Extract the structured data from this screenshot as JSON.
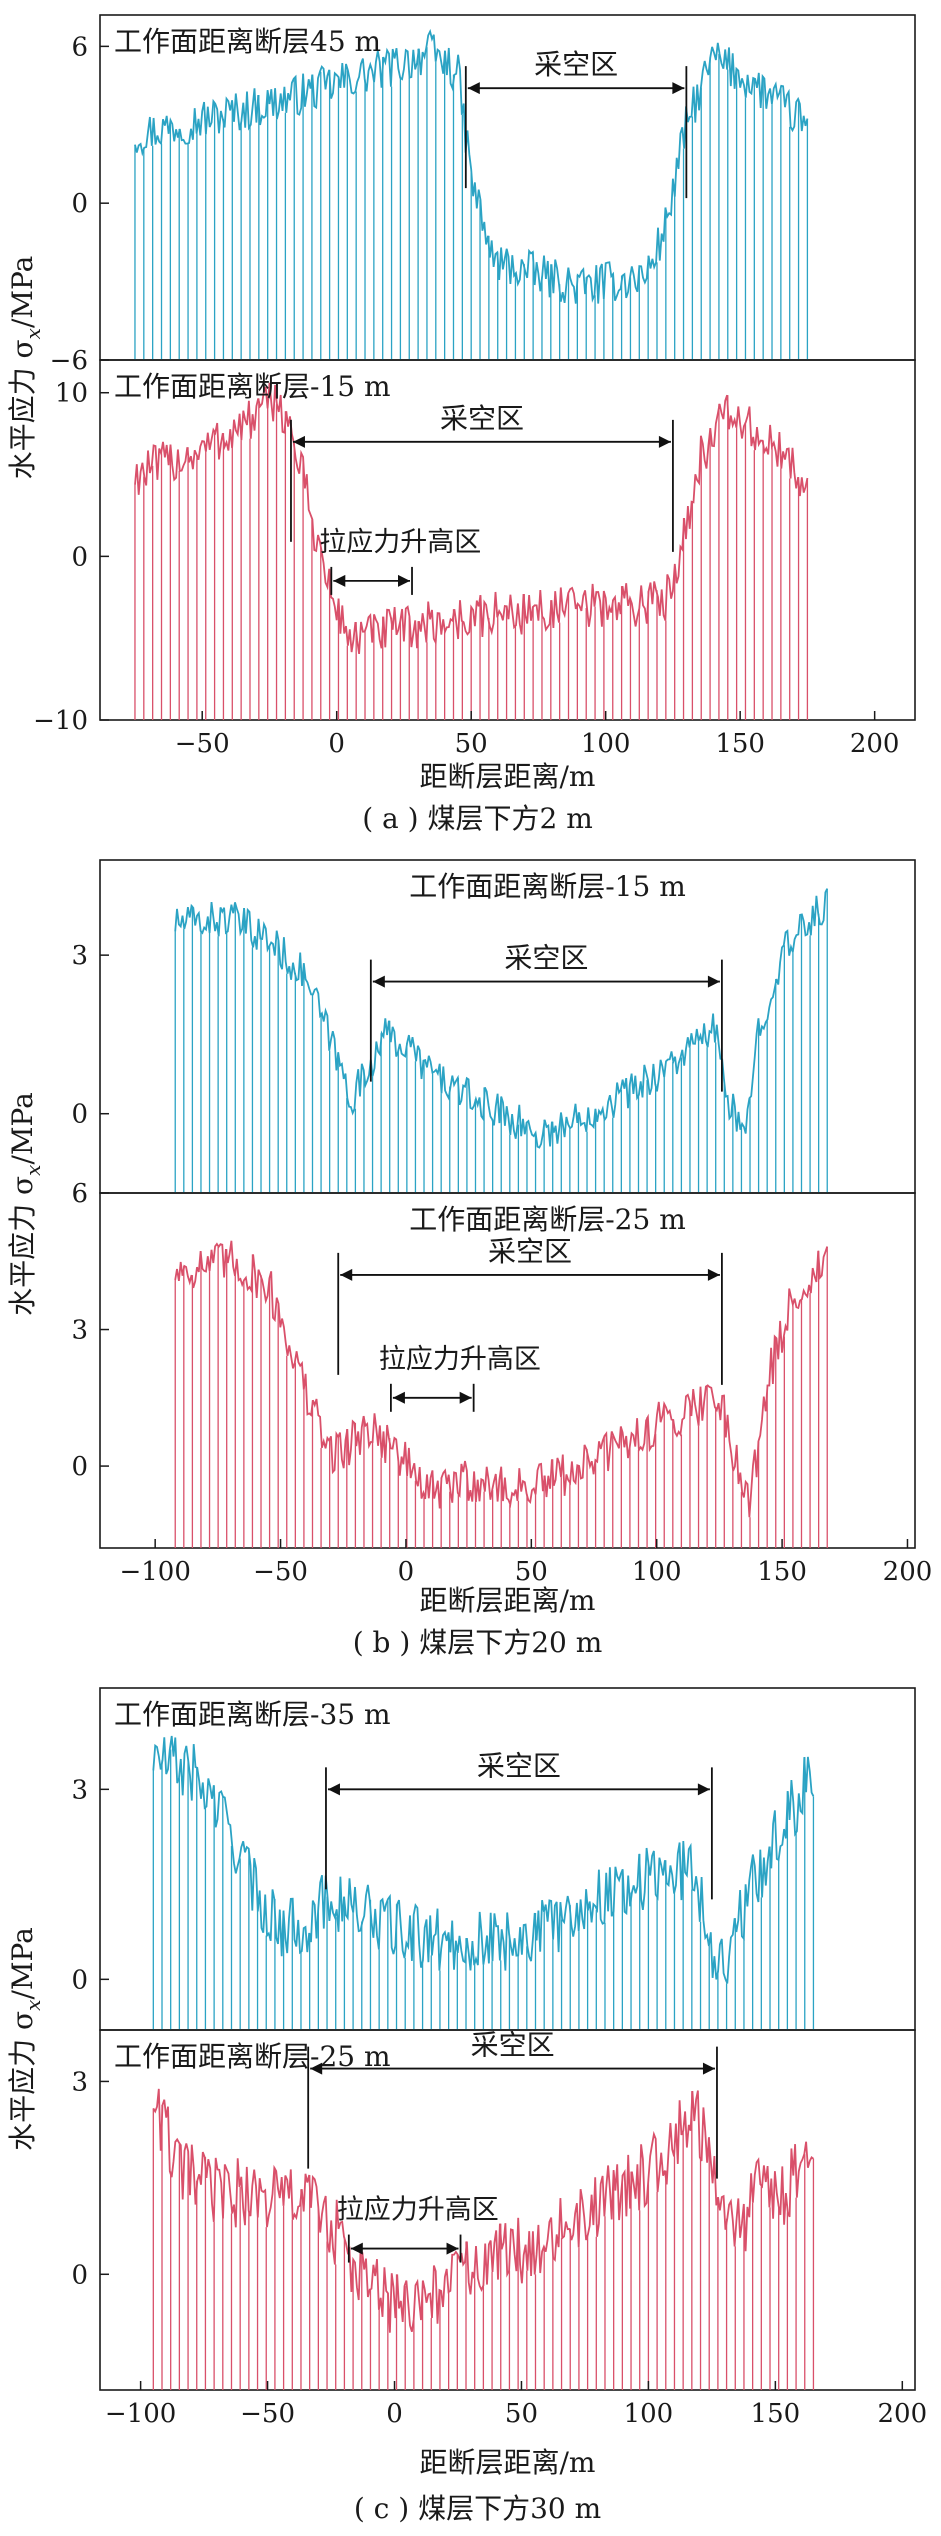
{
  "figure": {
    "shared_xlabel": "距断层距离/m",
    "ylabel_text": "水平应力 σ",
    "ylabel_sub": "x",
    "ylabel_unit": "/MPa",
    "colors": {
      "blue": "#2ba3c4",
      "red": "#d9506a",
      "axis": "#1a1a1a"
    }
  },
  "chart_data": [
    {
      "type": "line",
      "group": "a",
      "caption": "( a ) 煤层下方2 m",
      "xticks": [
        -50,
        0,
        50,
        100,
        150,
        200
      ],
      "xlim": [
        -88,
        215
      ],
      "panels": [
        {
          "color": "blue",
          "title": "工作面距离断层45 m",
          "title_pos": "left",
          "ylim": [
            -6,
            7.2
          ],
          "yticks": [
            -6,
            0,
            6
          ],
          "x_range": [
            -75,
            175
          ],
          "profile": [
            [
              -75,
              2.6
            ],
            [
              -50,
              3.2
            ],
            [
              -25,
              3.8
            ],
            [
              0,
              4.6
            ],
            [
              20,
              5.2
            ],
            [
              35,
              5.8
            ],
            [
              45,
              5.0
            ],
            [
              50,
              1.0
            ],
            [
              58,
              -2.2
            ],
            [
              90,
              -3.2
            ],
            [
              115,
              -2.8
            ],
            [
              122,
              -1.0
            ],
            [
              130,
              3.0
            ],
            [
              140,
              5.6
            ],
            [
              160,
              4.2
            ],
            [
              175,
              3.0
            ]
          ],
          "noise": 0.8,
          "goaf": {
            "label": "采空区",
            "x1": 48,
            "x2": 130,
            "y": 4.4
          },
          "tension": null
        },
        {
          "color": "red",
          "title": "工作面距离断层-15 m",
          "title_pos": "left",
          "ylim": [
            -10,
            12
          ],
          "yticks": [
            -10,
            0,
            10
          ],
          "x_range": [
            -75,
            175
          ],
          "profile": [
            [
              -75,
              5.0
            ],
            [
              -50,
              6.5
            ],
            [
              -30,
              8.5
            ],
            [
              -22,
              9.8
            ],
            [
              -15,
              6.5
            ],
            [
              -8,
              1.5
            ],
            [
              -2,
              -2.5
            ],
            [
              5,
              -5.0
            ],
            [
              20,
              -4.5
            ],
            [
              60,
              -3.5
            ],
            [
              100,
              -3.0
            ],
            [
              122,
              -2.8
            ],
            [
              128,
              0.5
            ],
            [
              135,
              6.0
            ],
            [
              145,
              8.8
            ],
            [
              160,
              7.0
            ],
            [
              175,
              4.5
            ]
          ],
          "noise": 1.4,
          "goaf": {
            "label": "采空区",
            "x1": -17,
            "x2": 125,
            "y": 7.0
          },
          "tension": {
            "label": "拉应力升高区",
            "x1": -2,
            "x2": 28,
            "y": -1.5
          }
        }
      ]
    },
    {
      "type": "line",
      "group": "b",
      "caption": "( b ) 煤层下方20 m",
      "xticks": [
        -100,
        -50,
        0,
        50,
        100,
        150,
        200
      ],
      "xlim": [
        -122,
        203
      ],
      "panels": [
        {
          "color": "blue",
          "title": "工作面距离断层-15 m",
          "title_pos": "center",
          "ylim": [
            -1.5,
            4.8
          ],
          "yticks": [
            0,
            3
          ],
          "x_range": [
            -92,
            168
          ],
          "profile": [
            [
              -92,
              3.6
            ],
            [
              -70,
              3.7
            ],
            [
              -55,
              3.3
            ],
            [
              -40,
              2.6
            ],
            [
              -30,
              1.4
            ],
            [
              -22,
              0.3
            ],
            [
              -15,
              0.8
            ],
            [
              -10,
              1.5
            ],
            [
              0,
              1.3
            ],
            [
              10,
              0.8
            ],
            [
              25,
              0.3
            ],
            [
              40,
              0.0
            ],
            [
              52,
              -0.4
            ],
            [
              65,
              -0.2
            ],
            [
              80,
              0.2
            ],
            [
              95,
              0.6
            ],
            [
              110,
              1.1
            ],
            [
              123,
              1.6
            ],
            [
              128,
              0.4
            ],
            [
              135,
              -0.6
            ],
            [
              140,
              1.5
            ],
            [
              150,
              3.0
            ],
            [
              160,
              3.6
            ],
            [
              168,
              4.0
            ]
          ],
          "noise": 0.35,
          "goaf": {
            "label": "采空区",
            "x1": -14,
            "x2": 126,
            "y": 2.5
          },
          "tension": null
        },
        {
          "color": "red",
          "title": "工作面距离断层-25 m",
          "title_pos": "center",
          "ylim": [
            -1.8,
            6
          ],
          "yticks": [
            0,
            3,
            6
          ],
          "x_range": [
            -92,
            168
          ],
          "profile": [
            [
              -92,
              4.3
            ],
            [
              -70,
              4.5
            ],
            [
              -55,
              4.0
            ],
            [
              -45,
              2.5
            ],
            [
              -38,
              1.3
            ],
            [
              -30,
              0.3
            ],
            [
              -22,
              0.5
            ],
            [
              -15,
              0.9
            ],
            [
              -5,
              0.4
            ],
            [
              10,
              -0.6
            ],
            [
              25,
              -0.3
            ],
            [
              40,
              -0.5
            ],
            [
              55,
              -0.4
            ],
            [
              70,
              0.0
            ],
            [
              90,
              0.6
            ],
            [
              110,
              1.2
            ],
            [
              125,
              1.6
            ],
            [
              130,
              0.4
            ],
            [
              137,
              -0.7
            ],
            [
              145,
              2.0
            ],
            [
              155,
              3.8
            ],
            [
              168,
              4.5
            ]
          ],
          "noise": 0.5,
          "goaf": {
            "label": "采空区",
            "x1": -27,
            "x2": 126,
            "y": 4.2
          },
          "tension": {
            "label": "拉应力升高区",
            "x1": -6,
            "x2": 27,
            "y": 1.5
          }
        }
      ]
    },
    {
      "type": "line",
      "group": "c",
      "caption": "( c ) 煤层下方30 m",
      "xticks": [
        -100,
        -50,
        0,
        50,
        100,
        150,
        200
      ],
      "xlim": [
        -116,
        205
      ],
      "panels": [
        {
          "color": "blue",
          "title": "工作面距离断层-35 m",
          "title_pos": "left",
          "ylim": [
            -0.8,
            4.6
          ],
          "yticks": [
            0,
            3
          ],
          "x_range": [
            -95,
            165
          ],
          "profile": [
            [
              -95,
              3.5
            ],
            [
              -80,
              3.3
            ],
            [
              -65,
              2.4
            ],
            [
              -55,
              1.4
            ],
            [
              -45,
              0.8
            ],
            [
              -35,
              0.9
            ],
            [
              -25,
              1.3
            ],
            [
              -10,
              1.0
            ],
            [
              5,
              0.7
            ],
            [
              20,
              0.6
            ],
            [
              40,
              0.6
            ],
            [
              60,
              0.8
            ],
            [
              80,
              1.3
            ],
            [
              100,
              1.6
            ],
            [
              118,
              1.8
            ],
            [
              124,
              0.6
            ],
            [
              130,
              0.2
            ],
            [
              140,
              1.4
            ],
            [
              150,
              2.2
            ],
            [
              158,
              2.8
            ],
            [
              165,
              3.3
            ]
          ],
          "noise": 0.5,
          "goaf": {
            "label": "采空区",
            "x1": -27,
            "x2": 125,
            "y": 3.0
          },
          "tension": null
        },
        {
          "color": "red",
          "title": "工作面距离断层-25 m",
          "title_pos": "left",
          "ylim": [
            -1.8,
            3.8
          ],
          "yticks": [
            0,
            3
          ],
          "x_range": [
            -95,
            165
          ],
          "profile": [
            [
              -95,
              2.8
            ],
            [
              -85,
              1.6
            ],
            [
              -70,
              1.3
            ],
            [
              -50,
              1.2
            ],
            [
              -35,
              1.2
            ],
            [
              -25,
              0.8
            ],
            [
              -15,
              0.0
            ],
            [
              -5,
              -0.3
            ],
            [
              5,
              -0.6
            ],
            [
              15,
              -0.3
            ],
            [
              30,
              0.1
            ],
            [
              50,
              0.4
            ],
            [
              70,
              0.8
            ],
            [
              90,
              1.3
            ],
            [
              105,
              1.8
            ],
            [
              118,
              2.6
            ],
            [
              125,
              1.6
            ],
            [
              135,
              0.6
            ],
            [
              145,
              1.4
            ],
            [
              155,
              1.3
            ],
            [
              165,
              2.3
            ]
          ],
          "noise": 0.55,
          "goaf": {
            "label": "采空区",
            "x1": -34,
            "x2": 127,
            "y": 3.2
          },
          "tension": {
            "label": "拉应力升高区",
            "x1": -18,
            "x2": 26,
            "y": 0.4
          }
        }
      ]
    }
  ]
}
